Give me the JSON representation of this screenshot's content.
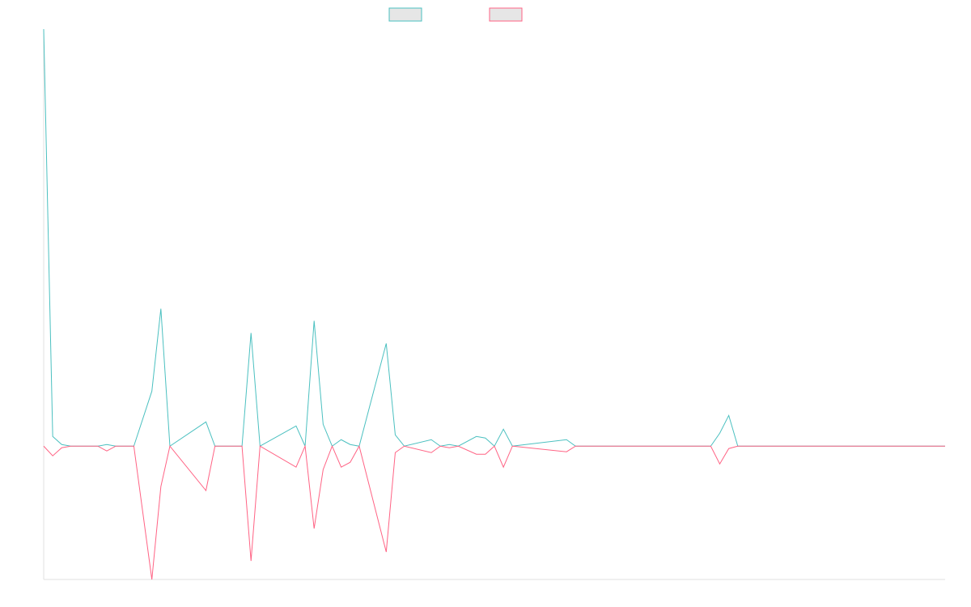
{
  "chart_data": {
    "type": "line",
    "title": "",
    "xlabel": "",
    "ylabel": "",
    "legend": "top-center",
    "grid": false,
    "ylim": [
      -165,
      516
    ],
    "series": [
      {
        "name": "",
        "color": "#4bc0c0",
        "fill": "#e6e6e6",
        "points": [
          [
            0,
            516
          ],
          [
            1,
            12
          ],
          [
            2,
            2
          ],
          [
            3,
            0
          ],
          [
            6,
            0
          ],
          [
            7,
            2
          ],
          [
            8,
            0
          ],
          [
            10,
            0
          ],
          [
            12,
            68
          ],
          [
            13,
            170
          ],
          [
            14,
            0
          ],
          [
            18,
            30
          ],
          [
            19,
            0
          ],
          [
            22,
            0
          ],
          [
            23,
            140
          ],
          [
            24,
            0
          ],
          [
            28,
            25
          ],
          [
            29,
            0
          ],
          [
            30,
            155
          ],
          [
            31,
            27
          ],
          [
            32,
            0
          ],
          [
            33,
            8
          ],
          [
            34,
            2
          ],
          [
            35,
            0
          ],
          [
            38,
            127
          ],
          [
            39,
            14
          ],
          [
            40,
            0
          ],
          [
            43,
            8
          ],
          [
            44,
            0
          ],
          [
            45,
            2
          ],
          [
            46,
            0
          ],
          [
            48,
            12
          ],
          [
            49,
            10
          ],
          [
            50,
            0
          ],
          [
            51,
            21
          ],
          [
            52,
            0
          ],
          [
            58,
            8
          ],
          [
            59,
            0
          ],
          [
            68,
            0
          ],
          [
            74,
            0
          ],
          [
            75,
            16
          ],
          [
            76,
            38
          ],
          [
            77,
            0
          ],
          [
            86,
            0
          ],
          [
            100,
            0
          ]
        ]
      },
      {
        "name": "",
        "color": "#ff6384",
        "fill": "#e6e6e6",
        "points": [
          [
            0,
            0
          ],
          [
            1,
            -12
          ],
          [
            2,
            -2
          ],
          [
            3,
            0
          ],
          [
            6,
            0
          ],
          [
            7,
            -6
          ],
          [
            8,
            0
          ],
          [
            10,
            0
          ],
          [
            12,
            -165
          ],
          [
            13,
            -50
          ],
          [
            14,
            0
          ],
          [
            18,
            -55
          ],
          [
            19,
            0
          ],
          [
            22,
            0
          ],
          [
            23,
            -142
          ],
          [
            24,
            0
          ],
          [
            28,
            -26
          ],
          [
            29,
            0
          ],
          [
            30,
            -102
          ],
          [
            31,
            -29
          ],
          [
            32,
            0
          ],
          [
            33,
            -26
          ],
          [
            34,
            -20
          ],
          [
            35,
            0
          ],
          [
            38,
            -131
          ],
          [
            39,
            -8
          ],
          [
            40,
            0
          ],
          [
            43,
            -8
          ],
          [
            44,
            0
          ],
          [
            45,
            -2
          ],
          [
            46,
            0
          ],
          [
            48,
            -10
          ],
          [
            49,
            -10
          ],
          [
            50,
            0
          ],
          [
            51,
            -26
          ],
          [
            52,
            0
          ],
          [
            58,
            -7
          ],
          [
            59,
            0
          ],
          [
            68,
            0
          ],
          [
            74,
            0
          ],
          [
            75,
            -22
          ],
          [
            76,
            -3
          ],
          [
            77,
            0
          ],
          [
            86,
            0
          ],
          [
            100,
            0
          ]
        ]
      }
    ]
  }
}
